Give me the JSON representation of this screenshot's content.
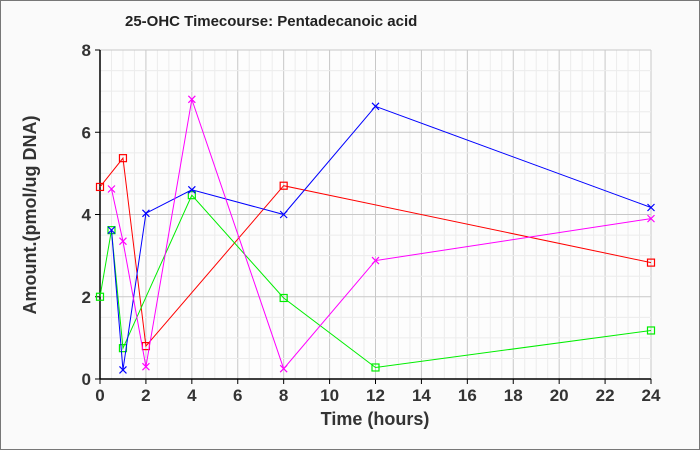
{
  "chart_data": {
    "type": "line",
    "title": "25-OHC Timecourse: Pentadecanoic acid",
    "xlabel": "Time (hours)",
    "ylabel": "Amount.(pmol/ug DNA)",
    "xlim": [
      0,
      24
    ],
    "ylim": [
      0,
      8
    ],
    "xticks": [
      0,
      2,
      4,
      6,
      8,
      10,
      12,
      14,
      16,
      18,
      20,
      22,
      24
    ],
    "yticks": [
      0,
      2,
      4,
      6,
      8
    ],
    "grid": true,
    "series": [
      {
        "name": "red",
        "color": "#ff0000",
        "marker": "square",
        "x": [
          0,
          1,
          2,
          8,
          24
        ],
        "y": [
          4.67,
          5.37,
          0.8,
          4.7,
          2.83
        ]
      },
      {
        "name": "green",
        "color": "#00ee00",
        "marker": "square",
        "x": [
          0,
          0.5,
          1,
          4,
          8,
          12,
          24
        ],
        "y": [
          2.0,
          3.62,
          0.75,
          4.47,
          1.97,
          0.28,
          1.18
        ]
      },
      {
        "name": "blue",
        "color": "#0000ff",
        "marker": "x",
        "x": [
          0.5,
          1,
          2,
          4,
          8,
          12,
          24
        ],
        "y": [
          3.62,
          0.22,
          4.03,
          4.6,
          4.0,
          6.63,
          4.17
        ]
      },
      {
        "name": "magenta",
        "color": "#ff00ff",
        "marker": "x",
        "x": [
          0.5,
          1,
          2,
          4,
          8,
          12,
          24
        ],
        "y": [
          4.62,
          3.35,
          0.3,
          6.8,
          0.25,
          2.88,
          3.9
        ]
      }
    ]
  }
}
